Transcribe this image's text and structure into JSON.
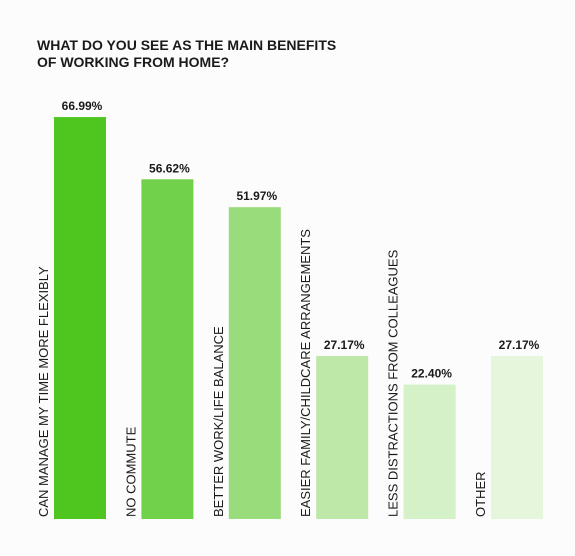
{
  "chart_data": {
    "type": "bar",
    "title": [
      "WHAT DO YOU SEE AS THE MAIN BENEFITS",
      "OF WORKING FROM HOME?"
    ],
    "categories": [
      "CAN MANAGE MY TIME MORE FLEXIBLY",
      "NO COMMUTE",
      "BETTER WORK/LIFE BALANCE",
      "EASIER FAMILY/CHILDCARE ARRANGEMENTS",
      "LESS DISTRACTIONS FROM COLLEAGUES",
      "OTHER"
    ],
    "values": [
      66.99,
      56.62,
      51.97,
      27.17,
      22.4,
      27.17
    ],
    "value_labels": [
      "66.99%",
      "56.62%",
      "51.97%",
      "27.17%",
      "22.40%",
      "27.17%"
    ],
    "colors": [
      "#4ec61f",
      "#72d14b",
      "#98dc7b",
      "#bde8a8",
      "#d5f1c7",
      "#e5f6dc"
    ],
    "ylim": [
      0,
      70
    ]
  }
}
